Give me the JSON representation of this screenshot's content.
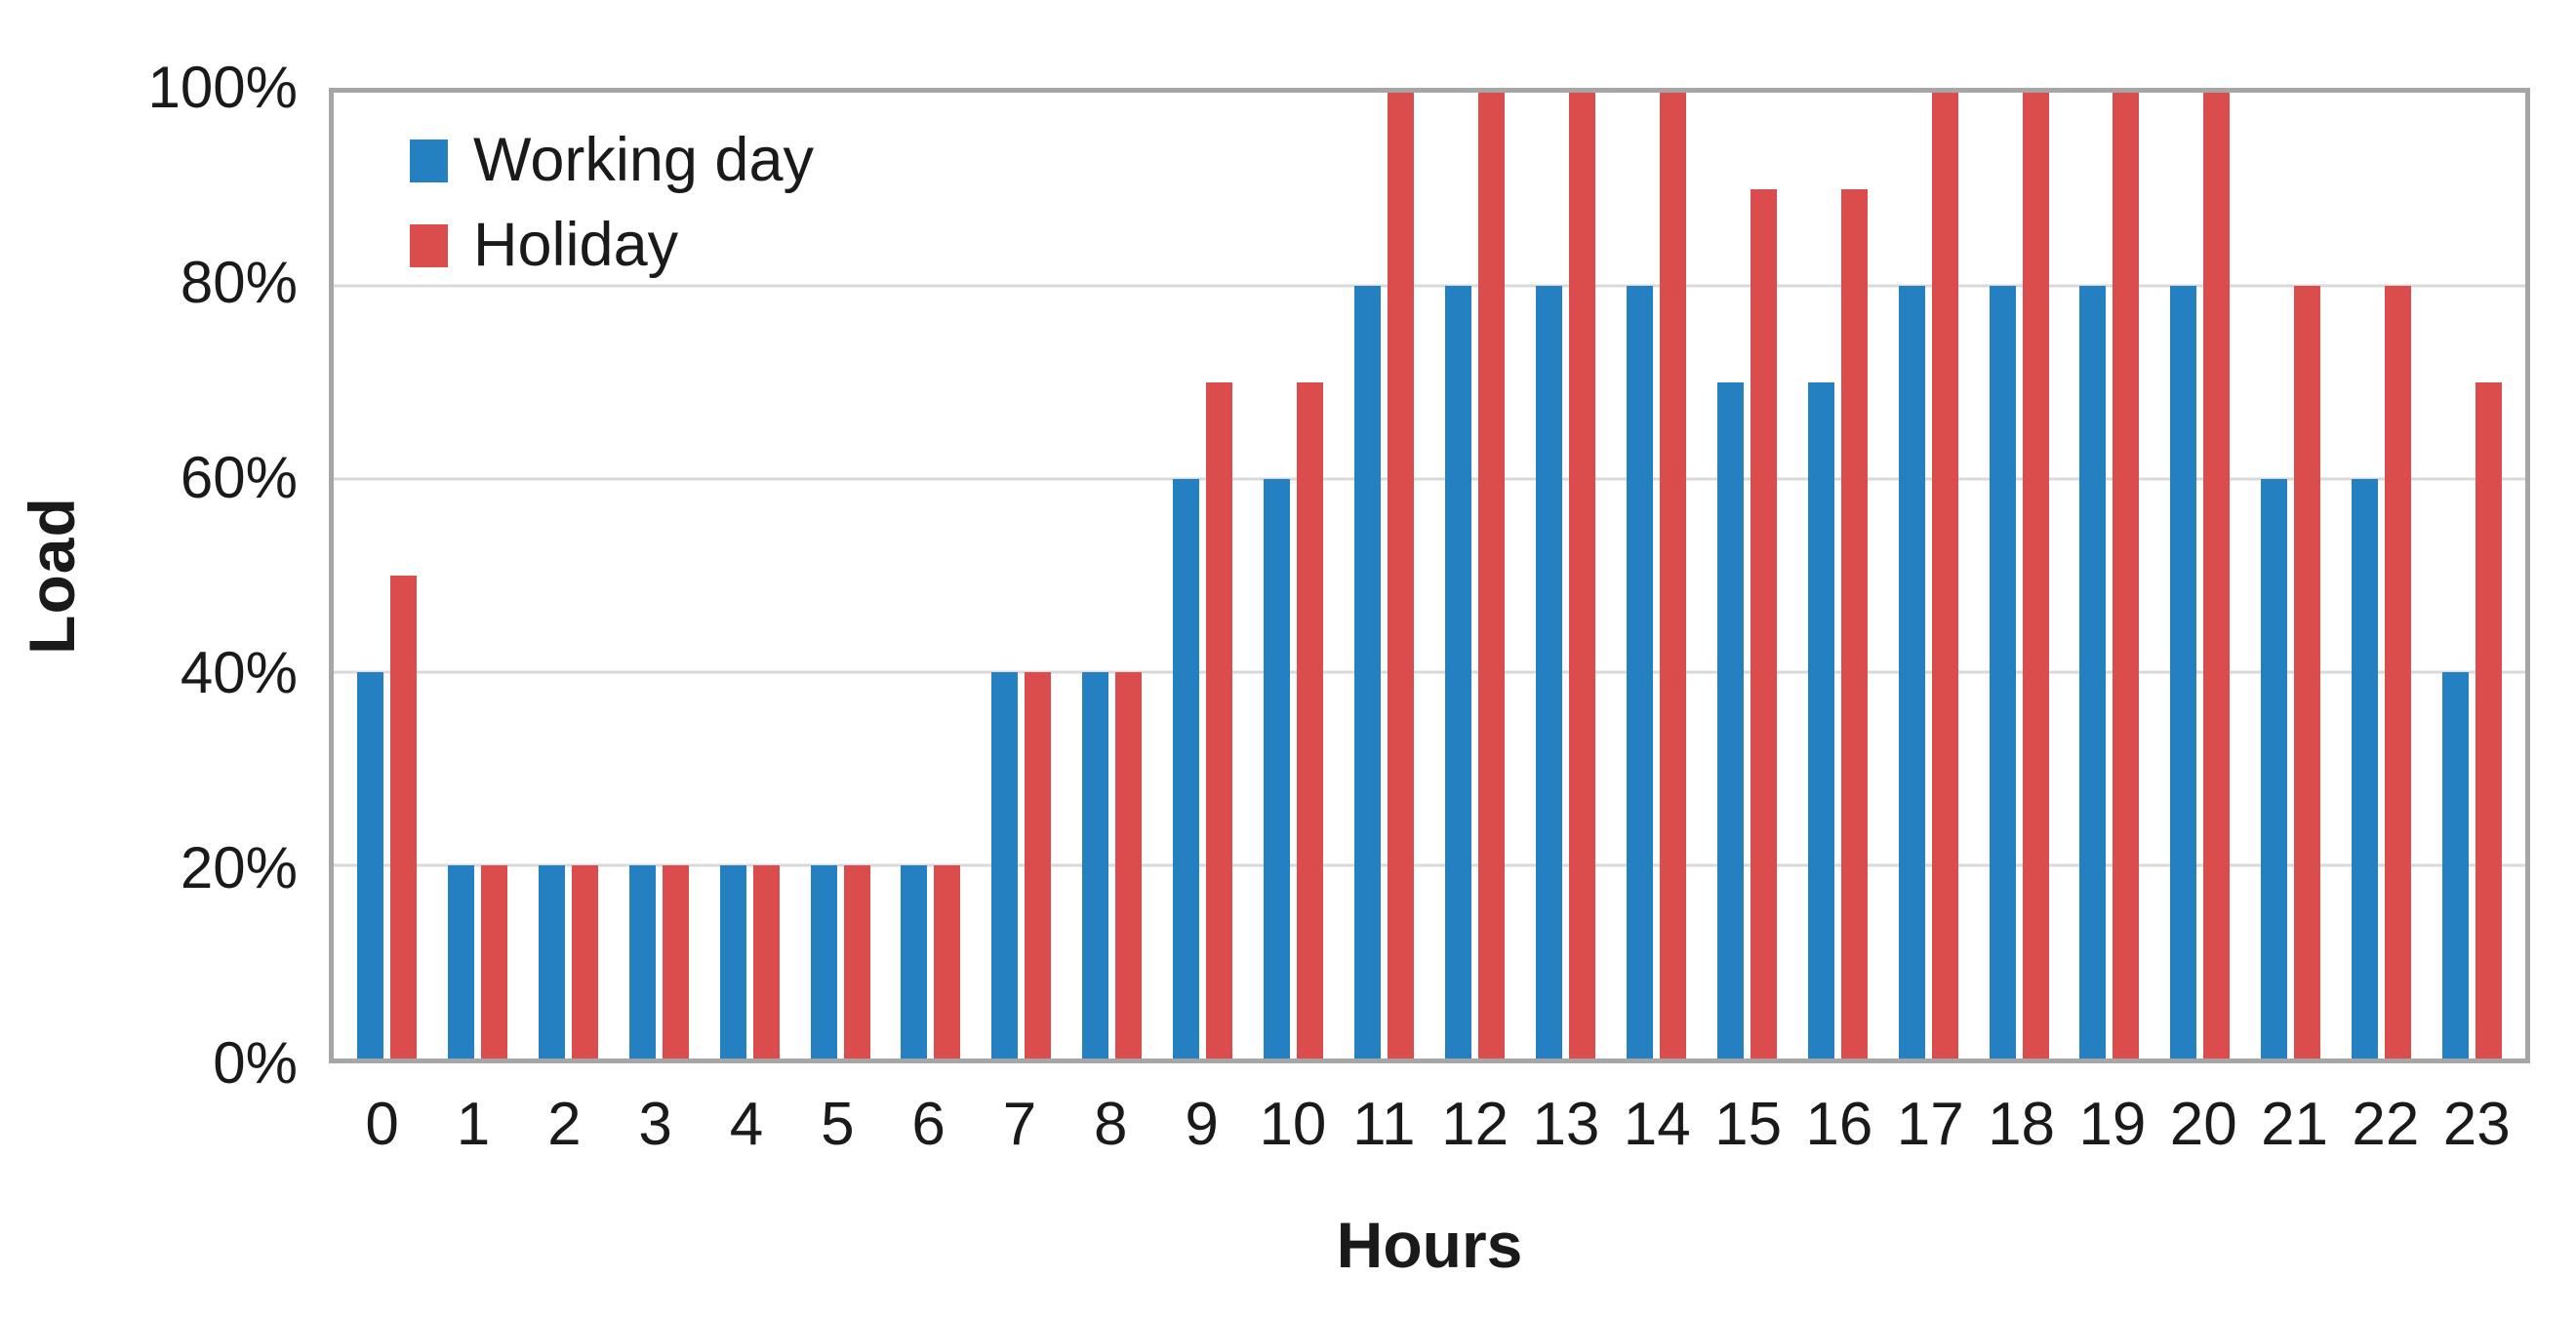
{
  "chart_data": {
    "type": "bar",
    "title": "",
    "xlabel": "Hours",
    "ylabel": "Load",
    "categories": [
      "0",
      "1",
      "2",
      "3",
      "4",
      "5",
      "6",
      "7",
      "8",
      "9",
      "10",
      "11",
      "12",
      "13",
      "14",
      "15",
      "16",
      "17",
      "18",
      "19",
      "20",
      "21",
      "22",
      "23"
    ],
    "series": [
      {
        "name": "Working day",
        "color": "#2480C0",
        "values": [
          40,
          20,
          20,
          20,
          20,
          20,
          20,
          40,
          40,
          60,
          60,
          80,
          80,
          80,
          80,
          70,
          70,
          80,
          80,
          80,
          80,
          60,
          60,
          40
        ]
      },
      {
        "name": "Holiday",
        "color": "#DB4D4D",
        "values": [
          50,
          20,
          20,
          20,
          20,
          20,
          20,
          40,
          40,
          70,
          70,
          100,
          100,
          100,
          100,
          90,
          90,
          100,
          100,
          100,
          100,
          80,
          80,
          70
        ]
      }
    ],
    "y_ticks": [
      {
        "label": "0%",
        "value": 0
      },
      {
        "label": "20%",
        "value": 20
      },
      {
        "label": "40%",
        "value": 40
      },
      {
        "label": "60%",
        "value": 60
      },
      {
        "label": "80%",
        "value": 80
      },
      {
        "label": "100%",
        "value": 100
      }
    ],
    "ylim": [
      0,
      100
    ],
    "grid": true,
    "gridline_values": [
      20,
      40,
      60,
      80
    ],
    "legend_position": "top-left-inside",
    "plot_border_color": "#a6a6a6",
    "gridline_color": "#d9d9d9",
    "text_color": "#1a1a1a"
  }
}
